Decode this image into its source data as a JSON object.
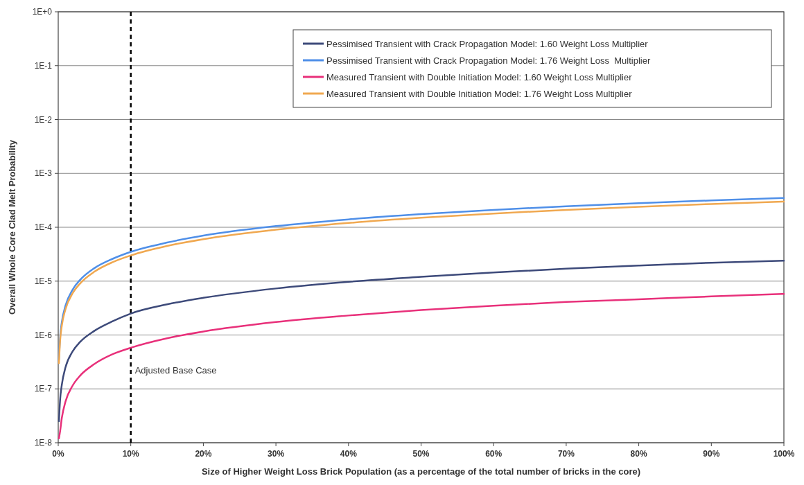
{
  "chart_data": {
    "type": "line",
    "xlabel": "Size of Higher Weight Loss Brick Population (as a percentage of the total number of bricks in the core)",
    "ylabel": "Overall Whole Core Clad Melt Probability",
    "log": "y",
    "grid": "y",
    "legend": "top right",
    "marker": "none",
    "line_style": "solid",
    "x": [
      0.1,
      0.25,
      0.5,
      1,
      2,
      3,
      5,
      7.5,
      10,
      15,
      20,
      30,
      40,
      50,
      60,
      70,
      80,
      90,
      100
    ],
    "xlim": [
      0,
      100
    ],
    "xticks": [
      {
        "value": 0,
        "label": "0%"
      },
      {
        "value": 10,
        "label": "10%"
      },
      {
        "value": 20,
        "label": "20%"
      },
      {
        "value": 30,
        "label": "30%"
      },
      {
        "value": 40,
        "label": "40%"
      },
      {
        "value": 50,
        "label": "50%"
      },
      {
        "value": 60,
        "label": "60%"
      },
      {
        "value": 70,
        "label": "70%"
      },
      {
        "value": 80,
        "label": "80%"
      },
      {
        "value": 90,
        "label": "90%"
      },
      {
        "value": 100,
        "label": "100%"
      }
    ],
    "ylim": [
      1e-08,
      1
    ],
    "yticks": [
      {
        "value": 1,
        "label": "1E+0"
      },
      {
        "value": 0.1,
        "label": "1E-1"
      },
      {
        "value": 0.01,
        "label": "1E-2"
      },
      {
        "value": 0.001,
        "label": "1E-3"
      },
      {
        "value": 0.0001,
        "label": "1E-4"
      },
      {
        "value": 1e-05,
        "label": "1E-5"
      },
      {
        "value": 1e-06,
        "label": "1E-6"
      },
      {
        "value": 1e-07,
        "label": "1E-7"
      },
      {
        "value": 1e-08,
        "label": "1E-8"
      }
    ],
    "series": [
      {
        "name": "Pessimised Transient with Crack Propagation Model: 1.60 Weight Loss Multiplier",
        "color": "#3d4a7a",
        "values": [
          2.5e-08,
          6e-08,
          1.2e-07,
          2.5e-07,
          5e-07,
          7.4e-07,
          1.2e-06,
          1.8e-06,
          2.5e-06,
          3.7e-06,
          4.9e-06,
          7.3e-06,
          9.7e-06,
          1.2e-05,
          1.45e-05,
          1.7e-05,
          1.95e-05,
          2.2e-05,
          2.4e-05
        ]
      },
      {
        "name": "Pessimised Transient with Crack Propagation Model: 1.76 Weight Loss  Multiplier",
        "color": "#4f8fe8",
        "values": [
          3.5e-07,
          8.8e-07,
          1.75e-06,
          3.5e-06,
          7e-06,
          1.05e-05,
          1.75e-05,
          2.6e-05,
          3.5e-05,
          5.2e-05,
          7e-05,
          0.000105,
          0.00014,
          0.000175,
          0.00021,
          0.000245,
          0.00028,
          0.000315,
          0.00035
        ]
      },
      {
        "name": "Measured Transient with Double Initiation Model: 1.60 Weight Loss Multiplier",
        "color": "#e8307a",
        "values": [
          1.2e-08,
          1.6e-08,
          2.9e-08,
          5.8e-08,
          1.16e-07,
          1.75e-07,
          2.9e-07,
          4.4e-07,
          5.8e-07,
          8.7e-07,
          1.16e-06,
          1.74e-06,
          2.3e-06,
          2.9e-06,
          3.5e-06,
          4.1e-06,
          4.6e-06,
          5.2e-06,
          5.8e-06
        ]
      },
      {
        "name": "Measured Transient with Double Initiation Model: 1.76 Weight Loss Multiplier",
        "color": "#f0a850",
        "values": [
          3e-07,
          7.5e-07,
          1.5e-06,
          3e-06,
          6e-06,
          9e-06,
          1.5e-05,
          2.25e-05,
          3e-05,
          4.5e-05,
          6e-05,
          9e-05,
          0.00012,
          0.00015,
          0.00018,
          0.00021,
          0.00024,
          0.00027,
          0.0003
        ]
      }
    ],
    "ref_lines": [
      {
        "axis": "x",
        "value": 10,
        "label": "Adjusted Base Case",
        "color": "#000000",
        "line_style": "dashed"
      }
    ]
  }
}
